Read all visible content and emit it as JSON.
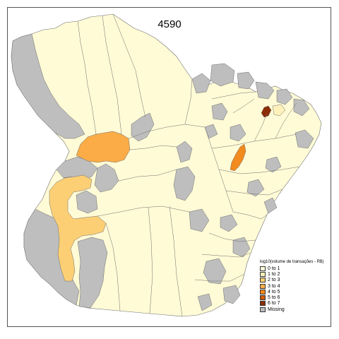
{
  "title": "4590",
  "legend": {
    "title": "log10(volume de transações - R$)",
    "items": [
      {
        "label": "0 to 1",
        "color": "#FFFBD6"
      },
      {
        "label": "1 to 2",
        "color": "#FEF1BB"
      },
      {
        "label": "2 to 3",
        "color": "#FDCF75"
      },
      {
        "label": "3 to 4",
        "color": "#FBAC47"
      },
      {
        "label": "4 to 5",
        "color": "#F28A1E"
      },
      {
        "label": "5 to 6",
        "color": "#CF5A07"
      },
      {
        "label": "6 to 7",
        "color": "#8C2D04"
      },
      {
        "label": "Missing",
        "color": "#BEBEBE"
      }
    ]
  },
  "colors": {
    "border": "#6e6e6e",
    "missing": "#BEBEBE"
  }
}
